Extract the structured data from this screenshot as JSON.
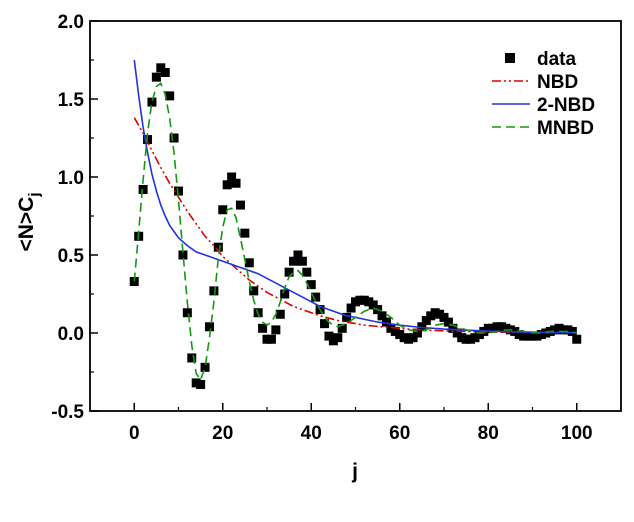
{
  "chart_data": {
    "type": "scatter",
    "xlabel": "j",
    "ylabel": "<N>C",
    "ylabel_subscript": "j",
    "xlim": [
      -10,
      110
    ],
    "ylim": [
      -0.5,
      2.0
    ],
    "x_ticks": [
      0,
      20,
      40,
      60,
      80,
      100
    ],
    "y_ticks": [
      -0.5,
      0.0,
      0.5,
      1.0,
      1.5,
      2.0
    ],
    "x_tick_labels": [
      "0",
      "20",
      "40",
      "60",
      "80",
      "100"
    ],
    "y_tick_labels": [
      "-0.5",
      "0.0",
      "0.5",
      "1.0",
      "1.5",
      "2.0"
    ],
    "grid": false,
    "legend_position": "top-right",
    "series": [
      {
        "name": "data",
        "style": "square-markers",
        "color": "#000000",
        "x": [
          0,
          1,
          2,
          3,
          4,
          5,
          6,
          7,
          8,
          9,
          10,
          11,
          12,
          13,
          14,
          15,
          16,
          17,
          18,
          19,
          20,
          21,
          22,
          23,
          24,
          25,
          26,
          27,
          28,
          29,
          30,
          31,
          32,
          33,
          34,
          35,
          36,
          37,
          38,
          39,
          40,
          41,
          42,
          43,
          44,
          45,
          46,
          47,
          48,
          49,
          50,
          51,
          52,
          53,
          54,
          55,
          56,
          57,
          58,
          59,
          60,
          61,
          62,
          63,
          64,
          65,
          66,
          67,
          68,
          69,
          70,
          71,
          72,
          73,
          74,
          75,
          76,
          77,
          78,
          79,
          80,
          81,
          82,
          83,
          84,
          85,
          86,
          87,
          88,
          89,
          90,
          91,
          92,
          93,
          94,
          95,
          96,
          97,
          98,
          99,
          100
        ],
        "y": [
          0.33,
          0.62,
          0.92,
          1.24,
          1.48,
          1.64,
          1.7,
          1.67,
          1.52,
          1.25,
          0.91,
          0.5,
          0.13,
          -0.16,
          -0.32,
          -0.33,
          -0.22,
          0.04,
          0.27,
          0.55,
          0.79,
          0.95,
          1.0,
          0.96,
          0.82,
          0.64,
          0.45,
          0.27,
          0.13,
          0.03,
          -0.04,
          -0.04,
          0.02,
          0.12,
          0.25,
          0.39,
          0.46,
          0.5,
          0.46,
          0.39,
          0.31,
          0.23,
          0.15,
          0.06,
          -0.02,
          -0.05,
          -0.03,
          0.03,
          0.1,
          0.16,
          0.2,
          0.21,
          0.21,
          0.2,
          0.18,
          0.15,
          0.11,
          0.07,
          0.03,
          0.01,
          -0.01,
          -0.03,
          -0.04,
          -0.03,
          0.0,
          0.04,
          0.08,
          0.11,
          0.13,
          0.12,
          0.1,
          0.07,
          0.03,
          0.0,
          -0.03,
          -0.04,
          -0.04,
          -0.03,
          -0.01,
          0.01,
          0.03,
          0.03,
          0.04,
          0.04,
          0.03,
          0.02,
          0.01,
          -0.01,
          -0.02,
          -0.02,
          -0.02,
          -0.02,
          -0.01,
          0.0,
          0.01,
          0.02,
          0.03,
          0.02,
          0.02,
          0.01,
          -0.04
        ]
      },
      {
        "name": "NBD",
        "style": "dash-dot-dot",
        "color": "#e00000",
        "x": [
          0,
          2,
          4,
          6,
          8,
          10,
          12,
          14,
          16,
          18,
          20,
          22,
          24,
          26,
          28,
          30,
          32,
          34,
          36,
          38,
          40,
          42,
          44,
          46,
          48,
          50,
          52,
          54,
          56,
          58,
          60,
          62,
          64,
          66,
          68,
          70,
          72,
          74,
          76,
          78,
          80,
          82,
          84,
          86,
          88,
          90,
          92,
          94,
          96,
          98,
          100
        ],
        "y": [
          1.38,
          1.28,
          1.17,
          1.06,
          0.96,
          0.87,
          0.78,
          0.7,
          0.62,
          0.56,
          0.49,
          0.44,
          0.39,
          0.34,
          0.3,
          0.26,
          0.23,
          0.2,
          0.17,
          0.15,
          0.13,
          0.11,
          0.095,
          0.08,
          0.07,
          0.06,
          0.05,
          0.045,
          0.04,
          0.035,
          0.03,
          0.025,
          0.022,
          0.019,
          0.016,
          0.014,
          0.012,
          0.01,
          0.009,
          0.008,
          0.007,
          0.006,
          0.005,
          0.004,
          0.004,
          0.003,
          0.003,
          0.002,
          0.002,
          0.002,
          0.001
        ]
      },
      {
        "name": "2-NBD",
        "style": "solid",
        "color": "#2233dd",
        "x": [
          0,
          1,
          2,
          3,
          4,
          5,
          6,
          7,
          8,
          9,
          10,
          12,
          14,
          16,
          18,
          20,
          22,
          24,
          26,
          28,
          30,
          32,
          34,
          36,
          38,
          40,
          42,
          44,
          46,
          48,
          50,
          55,
          60,
          65,
          70,
          75,
          80,
          85,
          90,
          95,
          100
        ],
        "y": [
          1.75,
          1.52,
          1.32,
          1.16,
          1.02,
          0.91,
          0.82,
          0.75,
          0.69,
          0.65,
          0.61,
          0.56,
          0.52,
          0.5,
          0.48,
          0.46,
          0.44,
          0.42,
          0.4,
          0.38,
          0.35,
          0.32,
          0.29,
          0.26,
          0.23,
          0.2,
          0.17,
          0.15,
          0.13,
          0.11,
          0.1,
          0.07,
          0.05,
          0.035,
          0.025,
          0.018,
          0.012,
          0.008,
          0.005,
          0.003,
          0.002
        ]
      },
      {
        "name": "MNBD",
        "style": "dashed",
        "color": "#119911",
        "x": [
          0,
          1,
          2,
          3,
          4,
          5,
          6,
          7,
          8,
          9,
          10,
          11,
          12,
          13,
          14,
          15,
          16,
          17,
          18,
          19,
          20,
          21,
          22,
          23,
          24,
          25,
          26,
          27,
          28,
          29,
          30,
          31,
          32,
          33,
          34,
          35,
          36,
          37,
          38,
          39,
          40,
          41,
          42,
          43,
          44,
          45,
          46,
          48,
          50,
          52,
          54,
          56,
          58,
          60,
          62,
          64,
          66,
          68,
          70,
          72,
          74,
          76,
          78,
          80,
          82,
          84,
          86,
          88,
          90,
          92,
          94,
          96,
          98,
          100
        ],
        "y": [
          0.33,
          0.65,
          0.98,
          1.28,
          1.48,
          1.58,
          1.6,
          1.53,
          1.38,
          1.15,
          0.85,
          0.52,
          0.2,
          -0.08,
          -0.26,
          -0.3,
          -0.22,
          -0.03,
          0.2,
          0.48,
          0.68,
          0.79,
          0.8,
          0.74,
          0.61,
          0.47,
          0.33,
          0.21,
          0.12,
          0.07,
          0.05,
          0.07,
          0.12,
          0.2,
          0.29,
          0.36,
          0.39,
          0.4,
          0.37,
          0.32,
          0.26,
          0.2,
          0.15,
          0.1,
          0.07,
          0.05,
          0.04,
          0.06,
          0.1,
          0.14,
          0.16,
          0.14,
          0.1,
          0.05,
          0.02,
          0.01,
          0.02,
          0.05,
          0.06,
          0.05,
          0.03,
          0.01,
          0.0,
          0.0,
          0.01,
          0.02,
          0.02,
          0.01,
          0.0,
          0.0,
          0.01,
          0.01,
          0.01,
          0.0
        ]
      }
    ]
  }
}
